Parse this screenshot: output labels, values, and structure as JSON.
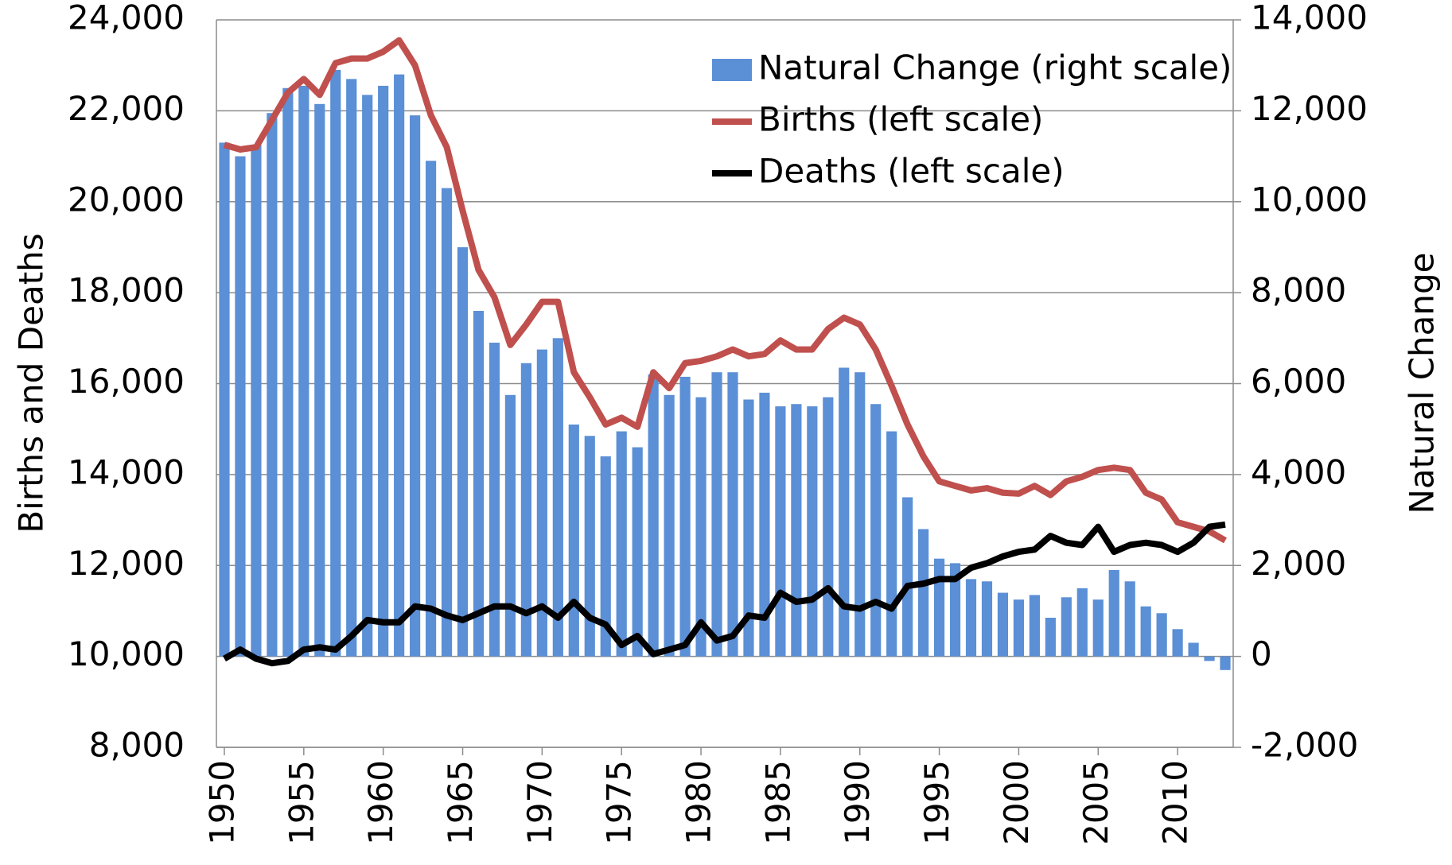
{
  "chart_data": {
    "type": "bar",
    "x": [
      1950,
      1951,
      1952,
      1953,
      1954,
      1955,
      1956,
      1957,
      1958,
      1959,
      1960,
      1961,
      1962,
      1963,
      1964,
      1965,
      1966,
      1967,
      1968,
      1969,
      1970,
      1971,
      1972,
      1973,
      1974,
      1975,
      1976,
      1977,
      1978,
      1979,
      1980,
      1981,
      1982,
      1983,
      1984,
      1985,
      1986,
      1987,
      1988,
      1989,
      1990,
      1991,
      1992,
      1993,
      1994,
      1995,
      1996,
      1997,
      1998,
      1999,
      2000,
      2001,
      2002,
      2003,
      2004,
      2005,
      2006,
      2007,
      2008,
      2009,
      2010,
      2011,
      2012,
      2013
    ],
    "series": [
      {
        "name": "Natural Change (right scale)",
        "type": "bar",
        "axis": "y2",
        "color": "#5b8fd6",
        "values": [
          11300,
          11000,
          11250,
          11950,
          12500,
          12550,
          12150,
          12900,
          12700,
          12350,
          12550,
          12800,
          11900,
          10900,
          10300,
          9000,
          7600,
          6900,
          5750,
          6450,
          6750,
          7000,
          5100,
          4850,
          4400,
          4950,
          4600,
          6200,
          5750,
          6150,
          5700,
          6250,
          6250,
          5650,
          5800,
          5500,
          5550,
          5500,
          5700,
          6350,
          6250,
          5550,
          4950,
          3500,
          2800,
          2150,
          2050,
          1700,
          1650,
          1400,
          1250,
          1350,
          850,
          1300,
          1500,
          1250,
          1900,
          1650,
          1100,
          950,
          600,
          300,
          -100,
          -300
        ]
      },
      {
        "name": "Births (left scale)",
        "type": "line",
        "color": "#c0504d",
        "values": [
          21250,
          21150,
          21200,
          21800,
          22400,
          22700,
          22350,
          23050,
          23150,
          23150,
          23300,
          23550,
          23000,
          21900,
          21200,
          19800,
          18500,
          17900,
          16850,
          17300,
          17800,
          17800,
          16250,
          15700,
          15100,
          15250,
          15050,
          16250,
          15900,
          16450,
          16500,
          16600,
          16750,
          16600,
          16650,
          16950,
          16750,
          16750,
          17200,
          17450,
          17300,
          16750,
          15950,
          15100,
          14400,
          13850,
          13750,
          13650,
          13700,
          13600,
          13580,
          13750,
          13550,
          13850,
          13950,
          14100,
          14150,
          14100,
          13600,
          13450,
          12950,
          12850,
          12750,
          12550
        ]
      },
      {
        "name": "Deaths (left scale)",
        "type": "line",
        "color": "#000000",
        "values": [
          9950,
          10150,
          9950,
          9850,
          9900,
          10150,
          10200,
          10150,
          10450,
          10800,
          10750,
          10750,
          11100,
          11050,
          10900,
          10800,
          10950,
          11100,
          11100,
          10950,
          11100,
          10850,
          11200,
          10850,
          10700,
          10250,
          10450,
          10050,
          10150,
          10250,
          10750,
          10350,
          10450,
          10900,
          10850,
          11400,
          11200,
          11250,
          11500,
          11100,
          11050,
          11200,
          11050,
          11550,
          11600,
          11700,
          11700,
          11950,
          12050,
          12200,
          12300,
          12350,
          12650,
          12500,
          12450,
          12850,
          12300,
          12450,
          12500,
          12450,
          12300,
          12500,
          12850,
          12900
        ]
      }
    ],
    "y_label": "Births and Deaths",
    "y2_label": "Natural Change",
    "xlim": [
      1949.5,
      2013.5
    ],
    "xticks": [
      1950,
      1955,
      1960,
      1965,
      1970,
      1975,
      1980,
      1985,
      1990,
      1995,
      2000,
      2005,
      2010
    ],
    "ylim": [
      8000,
      24000
    ],
    "yticks": [
      {
        "value": 8000,
        "label": "8,000"
      },
      {
        "value": 10000,
        "label": "10,000"
      },
      {
        "value": 12000,
        "label": "12,000"
      },
      {
        "value": 14000,
        "label": "14,000"
      },
      {
        "value": 16000,
        "label": "16,000"
      },
      {
        "value": 18000,
        "label": "18,000"
      },
      {
        "value": 20000,
        "label": "20,000"
      },
      {
        "value": 22000,
        "label": "22,000"
      },
      {
        "value": 24000,
        "label": "24,000"
      }
    ],
    "y2lim": [
      -2000,
      14000
    ],
    "y2ticks": [
      {
        "value": -2000,
        "label": "-2,000"
      },
      0,
      {
        "value": 2000,
        "label": "2,000"
      },
      {
        "value": 4000,
        "label": "4,000"
      },
      {
        "value": 6000,
        "label": "6,000"
      },
      {
        "value": 8000,
        "label": "8,000"
      },
      {
        "value": 10000,
        "label": "10,000"
      },
      {
        "value": 12000,
        "label": "12,000"
      },
      {
        "value": 14000,
        "label": "14,000"
      }
    ],
    "grid": true,
    "legend": "top-right"
  }
}
